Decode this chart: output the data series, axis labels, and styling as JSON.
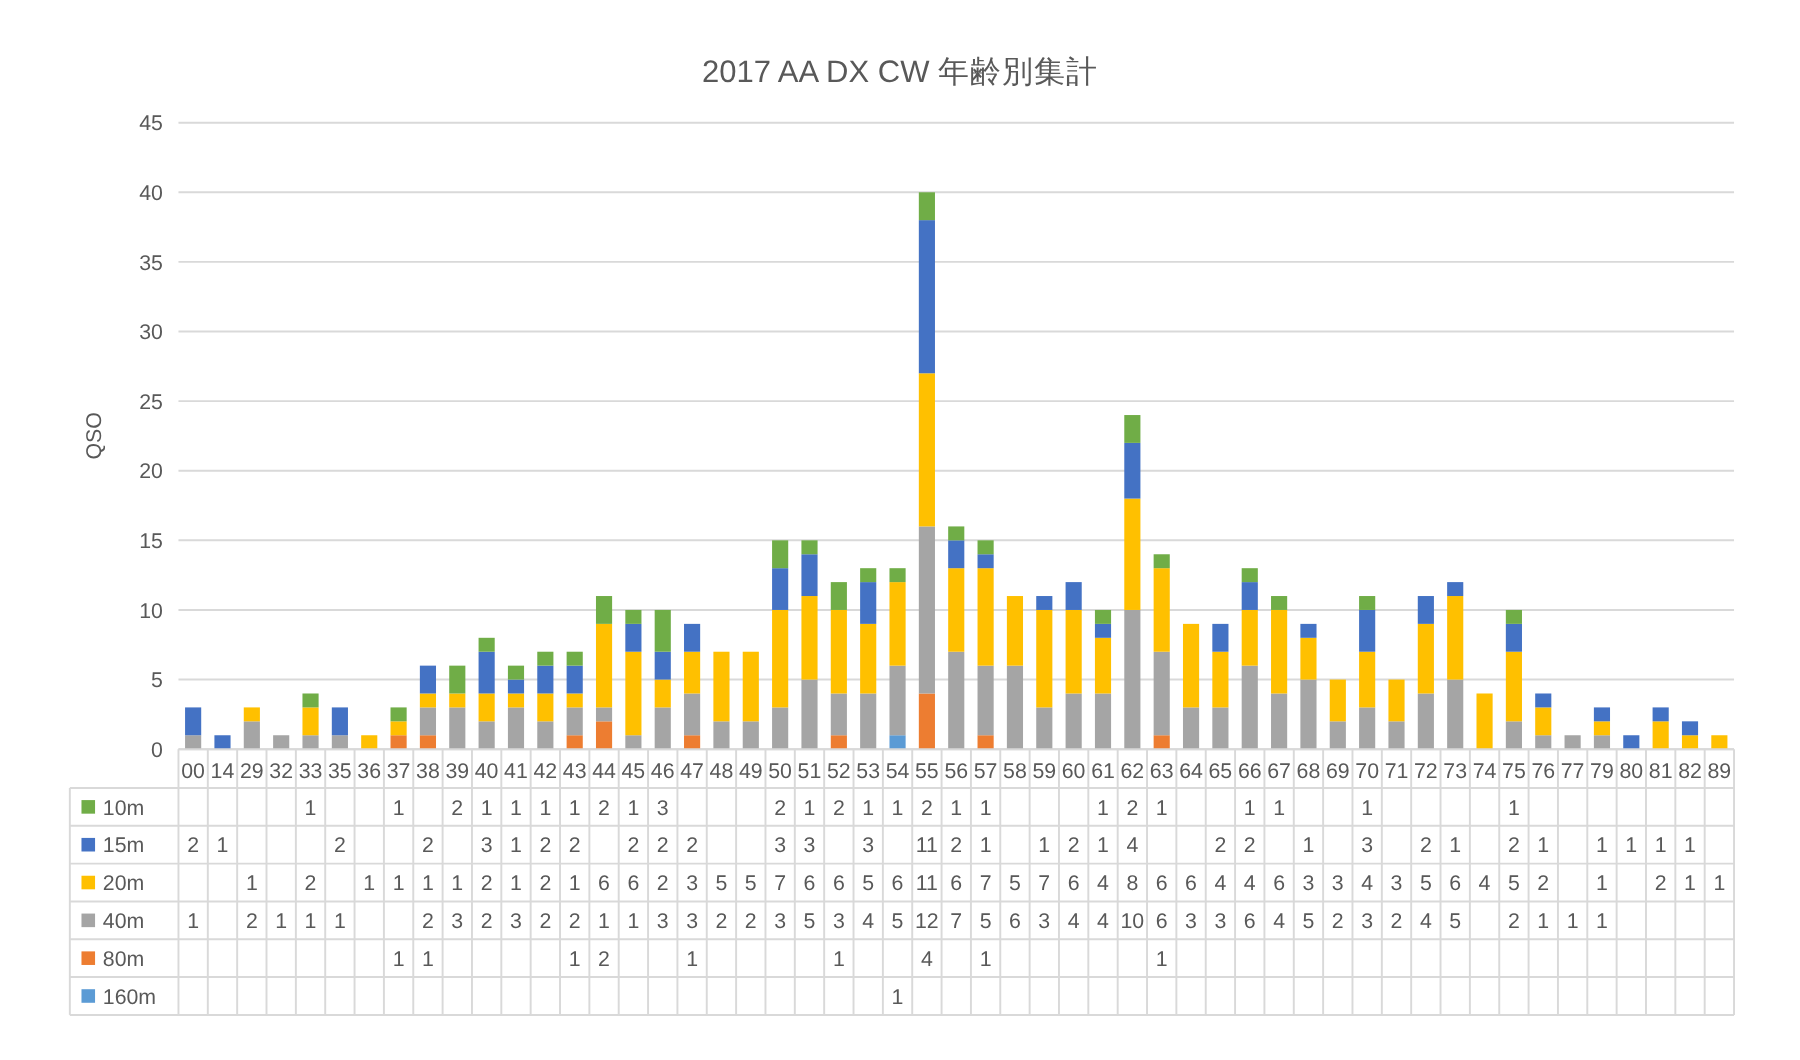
{
  "chart_data": {
    "type": "bar",
    "title": "2017 AA DX CW 年齢別集計",
    "ylabel": "QSO",
    "stacked": true,
    "grid": "y",
    "legend": "bottom",
    "ylim": [
      0,
      45
    ],
    "yticks": [
      0,
      5,
      10,
      15,
      20,
      25,
      30,
      35,
      40,
      45
    ],
    "categories": [
      "00",
      "14",
      "29",
      "32",
      "33",
      "35",
      "36",
      "37",
      "38",
      "39",
      "40",
      "41",
      "42",
      "43",
      "44",
      "45",
      "46",
      "47",
      "48",
      "49",
      "50",
      "51",
      "52",
      "53",
      "54",
      "55",
      "56",
      "57",
      "58",
      "59",
      "60",
      "61",
      "62",
      "63",
      "64",
      "65",
      "66",
      "67",
      "68",
      "69",
      "70",
      "71",
      "72",
      "73",
      "74",
      "75",
      "76",
      "77",
      "79",
      "80",
      "81",
      "82",
      "89"
    ],
    "series": [
      {
        "name": "160m",
        "color": "#5b9bd5",
        "values": [
          null,
          null,
          null,
          null,
          null,
          null,
          null,
          null,
          null,
          null,
          null,
          null,
          null,
          null,
          null,
          null,
          null,
          null,
          null,
          null,
          null,
          null,
          null,
          null,
          1,
          null,
          null,
          null,
          null,
          null,
          null,
          null,
          null,
          null,
          null,
          null,
          null,
          null,
          null,
          null,
          null,
          null,
          null,
          null,
          null,
          null,
          null,
          null,
          null,
          null,
          null,
          null,
          null
        ],
        "value_labels": [
          null,
          null,
          null,
          null,
          null,
          null,
          null,
          null,
          null,
          null,
          null,
          null,
          null,
          null,
          null,
          null,
          null,
          null,
          null,
          null,
          null,
          null,
          null,
          null,
          "1",
          null,
          null,
          null,
          null,
          null,
          null,
          null,
          null,
          null,
          null,
          null,
          null,
          null,
          null,
          null,
          null,
          null,
          null,
          null,
          null,
          null,
          null,
          null,
          null,
          null,
          null,
          null,
          null
        ]
      },
      {
        "name": "80m",
        "color": "#ed7d31",
        "values": [
          null,
          null,
          null,
          null,
          null,
          null,
          null,
          1,
          1,
          null,
          null,
          null,
          null,
          1,
          2,
          null,
          null,
          1,
          null,
          null,
          null,
          null,
          1,
          null,
          null,
          4,
          null,
          1,
          null,
          null,
          null,
          null,
          null,
          1,
          null,
          null,
          null,
          null,
          null,
          null,
          null,
          null,
          null,
          null,
          null,
          null,
          null,
          null,
          null,
          null,
          null,
          null,
          null
        ],
        "value_labels": [
          null,
          null,
          null,
          null,
          null,
          null,
          null,
          "1",
          "1",
          null,
          null,
          null,
          null,
          "1",
          "2",
          null,
          null,
          "1",
          null,
          null,
          null,
          null,
          "1",
          null,
          null,
          "4",
          null,
          "1",
          null,
          null,
          null,
          null,
          null,
          "1",
          null,
          null,
          null,
          null,
          null,
          null,
          null,
          null,
          null,
          null,
          null,
          null,
          null,
          null,
          null,
          null,
          null,
          null,
          null
        ]
      },
      {
        "name": "40m",
        "color": "#a5a5a5",
        "values": [
          1,
          null,
          2,
          1,
          1,
          1,
          null,
          null,
          2,
          3,
          2,
          3,
          2,
          2,
          1,
          1,
          3,
          3,
          2,
          2,
          3,
          5,
          3,
          4,
          5,
          12,
          7,
          5,
          6,
          3,
          4,
          4,
          10,
          6,
          3,
          3,
          6,
          4,
          5,
          2,
          3,
          2,
          4,
          5,
          null,
          2,
          1,
          1,
          1,
          null,
          null,
          null,
          null
        ],
        "value_labels": [
          "1",
          null,
          "2",
          "1",
          "1",
          "1",
          null,
          null,
          "2",
          "3",
          "2",
          "3",
          "2",
          "2",
          "1",
          "1",
          "3",
          "3",
          "2",
          "2",
          "3",
          "5",
          "3",
          "4",
          "5",
          "12",
          "7",
          "5",
          "6",
          "3",
          "4",
          "4",
          "10",
          "6",
          "3",
          "3",
          "6",
          "4",
          "5",
          "2",
          "3",
          "2",
          "4",
          "5",
          null,
          "2",
          "1",
          "1",
          "1",
          null,
          null,
          null,
          null
        ]
      },
      {
        "name": "20m",
        "color": "#ffc000",
        "values": [
          null,
          null,
          1,
          null,
          2,
          null,
          1,
          1,
          1,
          1,
          2,
          1,
          2,
          1,
          6,
          6,
          2,
          3,
          5,
          5,
          7,
          6,
          6,
          5,
          6,
          11,
          6,
          7,
          5,
          7,
          6,
          4,
          8,
          6,
          6,
          4,
          4,
          6,
          3,
          3,
          4,
          3,
          5,
          6,
          4,
          5,
          2,
          null,
          1,
          null,
          2,
          1,
          1
        ],
        "value_labels": [
          null,
          null,
          "1",
          null,
          "2",
          null,
          "1",
          "1",
          "1",
          "1",
          "2",
          "1",
          "2",
          "1",
          "6",
          "6",
          "2",
          "3",
          "5",
          "5",
          "7",
          "6",
          "6",
          "5",
          "6",
          "11",
          "6",
          "7",
          "5",
          "7",
          "6",
          "4",
          "8",
          "6",
          "6",
          "4",
          "4",
          "6",
          "3",
          "3",
          "4",
          "3",
          "5",
          "6",
          "4",
          "5",
          "2",
          null,
          "1",
          null,
          "2",
          "1",
          "1"
        ]
      },
      {
        "name": "15m",
        "color": "#4472c4",
        "values": [
          2,
          1,
          null,
          null,
          null,
          2,
          null,
          null,
          2,
          null,
          3,
          1,
          2,
          2,
          null,
          2,
          2,
          2,
          null,
          null,
          3,
          3,
          null,
          3,
          null,
          11,
          2,
          1,
          null,
          1,
          2,
          1,
          4,
          null,
          null,
          2,
          2,
          null,
          1,
          null,
          3,
          null,
          2,
          1,
          null,
          2,
          1,
          null,
          1,
          1,
          1,
          1,
          null
        ],
        "value_labels": [
          "2",
          "1",
          null,
          null,
          null,
          "2",
          null,
          null,
          "2",
          null,
          "3",
          "1",
          "2",
          "2",
          null,
          "2",
          "2",
          "2",
          null,
          null,
          "3",
          "3",
          null,
          "3",
          null,
          "11",
          "2",
          "1",
          null,
          "1",
          "2",
          "1",
          "4",
          null,
          null,
          "2",
          "2",
          null,
          "1",
          null,
          "3",
          null,
          "2",
          "1",
          null,
          "2",
          "1",
          null,
          "1",
          "1",
          "1",
          "1",
          null
        ]
      },
      {
        "name": "10m",
        "color": "#70ad47",
        "values": [
          null,
          null,
          null,
          null,
          1,
          null,
          null,
          1,
          null,
          2,
          1,
          1,
          1,
          1,
          2,
          1,
          3,
          null,
          null,
          null,
          2,
          1,
          2,
          1,
          1,
          2,
          1,
          1,
          null,
          null,
          null,
          1,
          2,
          1,
          null,
          null,
          1,
          1,
          null,
          null,
          1,
          null,
          null,
          null,
          null,
          1,
          null,
          null,
          null,
          null,
          null,
          null,
          null
        ],
        "value_labels": [
          null,
          null,
          null,
          null,
          "1",
          null,
          null,
          "1",
          null,
          "2",
          "1",
          "1",
          "1",
          "1",
          "2",
          "1",
          "3",
          null,
          null,
          null,
          "2",
          "1",
          "2",
          "1",
          "1",
          "2",
          "1",
          "1",
          null,
          null,
          null,
          "1",
          "2",
          "1",
          null,
          null,
          "1",
          "1",
          null,
          null,
          "1",
          null,
          null,
          null,
          null,
          "1",
          null,
          null,
          null,
          null,
          null,
          null,
          null
        ]
      }
    ]
  }
}
